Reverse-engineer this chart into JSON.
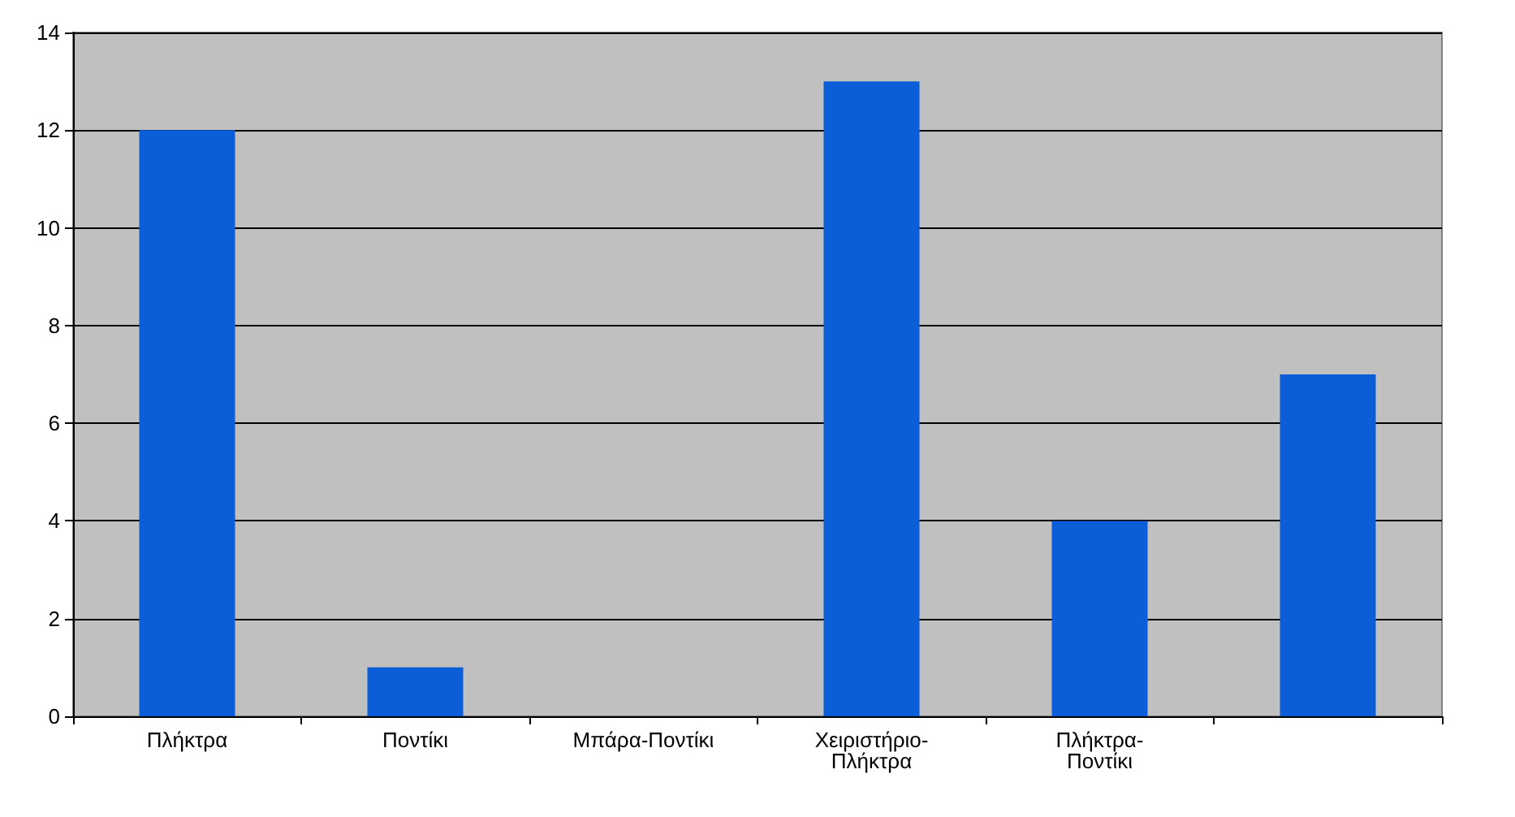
{
  "chart_data": {
    "type": "bar",
    "categories": [
      "Πλήκτρα",
      "Ποντίκι",
      "Μπάρα-Ποντίκι",
      "Χειριστήριο-Πλήκτρα",
      "Πλήκτρα-Ποντίκι",
      null
    ],
    "values": [
      12,
      1,
      0,
      13,
      4,
      7
    ],
    "color": "#0b5ed7",
    "ylim": [
      0,
      14
    ],
    "yticks": [
      0,
      2,
      4,
      6,
      8,
      10,
      12,
      14
    ],
    "grid": "y"
  }
}
